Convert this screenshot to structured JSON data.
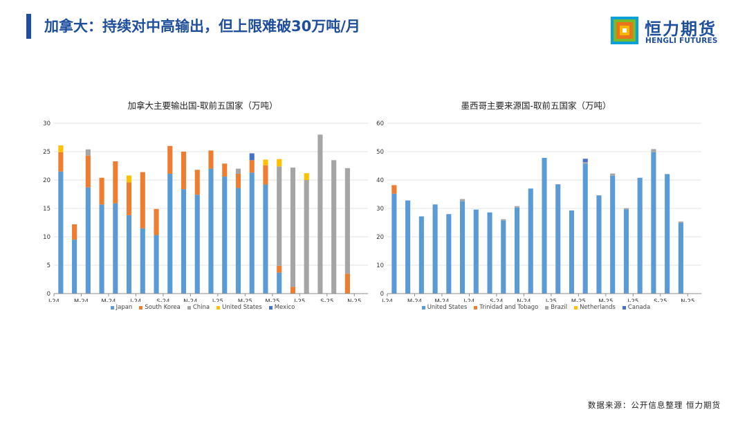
{
  "header": {
    "title": "加拿大：持续对中高输出，但上限难破30万吨/月",
    "brand_cn": "恒力期货",
    "brand_en": "HENGLI FUTURES",
    "brand_colors": {
      "blue": "#1f4e9c",
      "yellow": "#f5b800",
      "orange": "#e8751a",
      "green": "#7ab929",
      "cyan": "#0aa0d8"
    }
  },
  "footer": {
    "source": "数据来源：公开信息整理  恒力期货"
  },
  "chart_data": [
    {
      "type": "bar",
      "stacked": true,
      "title": "加拿大主要输出国-取前五国家（万吨）",
      "ylim": [
        0,
        30
      ],
      "yticks": [
        0,
        5,
        10,
        15,
        20,
        25,
        30
      ],
      "xtick_labels": [
        "J-24",
        "M-24",
        "M-24",
        "J-24",
        "S-24",
        "N-24",
        "J-25",
        "M-25",
        "M-25",
        "J-25",
        "S-25",
        "N-25"
      ],
      "grid": true,
      "legend": "bottom",
      "categories": [
        "Jan-24",
        "Feb-24",
        "Mar-24",
        "Apr-24",
        "May-24",
        "Jun-24",
        "Jul-24",
        "Aug-24",
        "Sep-24",
        "Oct-24",
        "Nov-24",
        "Dec-24",
        "Jan-25",
        "Feb-25",
        "Mar-25",
        "Apr-25",
        "May-25",
        "Jun-25",
        "Jul-25",
        "Aug-25",
        "Sep-25",
        "Oct-25"
      ],
      "series": [
        {
          "name": "Japan",
          "color": "#5b9bd5",
          "values": [
            21.5,
            9.5,
            18.7,
            15.7,
            15.9,
            13.8,
            11.5,
            10.3,
            21.1,
            18.4,
            17.4,
            22.0,
            20.6,
            18.6,
            21.3,
            19.2,
            3.7,
            0,
            0,
            0,
            0,
            0
          ]
        },
        {
          "name": "South Korea",
          "color": "#ed7d31",
          "values": [
            3.4,
            2.7,
            5.6,
            4.7,
            7.4,
            5.8,
            9.9,
            4.6,
            4.9,
            6.6,
            4.4,
            3.2,
            2.3,
            2.5,
            2.2,
            3.4,
            1.2,
            1.2,
            0,
            0,
            0,
            3.5
          ]
        },
        {
          "name": "China",
          "color": "#a5a5a5",
          "values": [
            0,
            0,
            1.1,
            0,
            0,
            0,
            0,
            0,
            0,
            0,
            0,
            0,
            0,
            0.9,
            0,
            0,
            17.5,
            21.0,
            20.0,
            28.0,
            23.5,
            18.6
          ]
        },
        {
          "name": "United States",
          "color": "#ffc000",
          "values": [
            1.2,
            0,
            0,
            0,
            0,
            1.2,
            0,
            0,
            0,
            0,
            0,
            0,
            0,
            0,
            0,
            1.0,
            1.3,
            0,
            1.2,
            0,
            0,
            0
          ]
        },
        {
          "name": "Mexico",
          "color": "#4472c4",
          "values": [
            0,
            0,
            0,
            0,
            0,
            0,
            0,
            0,
            0,
            0,
            0,
            0,
            0,
            0,
            1.2,
            0,
            0,
            0,
            0,
            0,
            0,
            0
          ]
        }
      ]
    },
    {
      "type": "bar",
      "stacked": true,
      "title": "墨西哥主要来源国-取前五国家（万吨）",
      "ylim": [
        0,
        60
      ],
      "yticks": [
        0,
        10,
        20,
        30,
        40,
        50,
        60
      ],
      "xtick_labels": [
        "J-24",
        "M-24",
        "M-24",
        "J-24",
        "S-24",
        "N-24",
        "J-25",
        "M-25",
        "M-25",
        "J-25",
        "S-25",
        "N-25"
      ],
      "grid": true,
      "legend": "bottom",
      "categories": [
        "Jan-24",
        "Feb-24",
        "Mar-24",
        "Apr-24",
        "May-24",
        "Jun-24",
        "Jul-24",
        "Aug-24",
        "Sep-24",
        "Oct-24",
        "Nov-24",
        "Dec-24",
        "Jan-25",
        "Feb-25",
        "Mar-25",
        "Apr-25",
        "May-25",
        "Jun-25",
        "Jul-25",
        "Aug-25",
        "Sep-25",
        "Oct-25"
      ],
      "series": [
        {
          "name": "United States",
          "color": "#5b9bd5",
          "values": [
            35.2,
            32.8,
            27.2,
            31.4,
            28.0,
            32.5,
            29.6,
            28.6,
            25.8,
            30.3,
            37.0,
            47.8,
            38.5,
            29.3,
            45.8,
            34.6,
            41.5,
            29.7,
            40.8,
            49.8,
            42.1,
            24.9
          ]
        },
        {
          "name": "Trinidad and Tobago",
          "color": "#ed7d31",
          "values": [
            3.0,
            0,
            0,
            0,
            0,
            0,
            0,
            0,
            0,
            0,
            0,
            0,
            0,
            0,
            0,
            0,
            0,
            0,
            0,
            0,
            0,
            0
          ]
        },
        {
          "name": "Brazil",
          "color": "#a5a5a5",
          "values": [
            0,
            0,
            0,
            0,
            0,
            0.8,
            0,
            0,
            0.4,
            0.5,
            0,
            0,
            0,
            0,
            0.5,
            0,
            0.8,
            0.4,
            0,
            1.1,
            0,
            0.5
          ]
        },
        {
          "name": "Netherlands",
          "color": "#ffc000",
          "values": [
            0,
            0,
            0,
            0,
            0,
            0,
            0,
            0,
            0,
            0,
            0,
            0,
            0,
            0,
            0,
            0,
            0,
            0,
            0,
            0,
            0,
            0
          ]
        },
        {
          "name": "Canada",
          "color": "#4472c4",
          "values": [
            0,
            0,
            0,
            0,
            0,
            0,
            0,
            0,
            0,
            0,
            0,
            0,
            0,
            0,
            1.2,
            0,
            0,
            0,
            0,
            0,
            0,
            0
          ]
        }
      ]
    }
  ]
}
